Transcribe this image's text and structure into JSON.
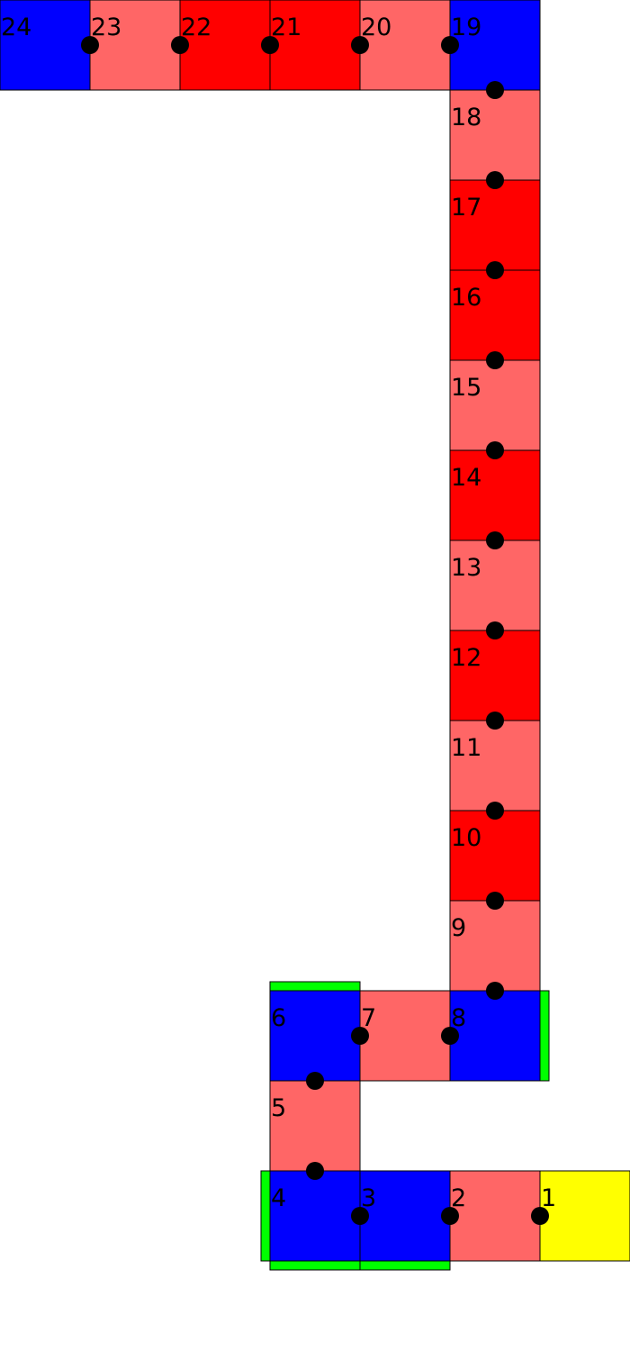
{
  "colors": {
    "blue": "#0000ff",
    "pink": "#ff6666",
    "red": "#ff0000",
    "yellow": "#ffff00",
    "green": "#00ff00",
    "outline": "#000000",
    "dot": "#000000"
  },
  "cells": [
    {
      "label": "1",
      "color": "yellow"
    },
    {
      "label": "2",
      "color": "pink"
    },
    {
      "label": "3",
      "color": "blue"
    },
    {
      "label": "4",
      "color": "blue"
    },
    {
      "label": "5",
      "color": "pink"
    },
    {
      "label": "6",
      "color": "blue"
    },
    {
      "label": "7",
      "color": "pink"
    },
    {
      "label": "8",
      "color": "blue"
    },
    {
      "label": "9",
      "color": "pink"
    },
    {
      "label": "10",
      "color": "red"
    },
    {
      "label": "11",
      "color": "pink"
    },
    {
      "label": "12",
      "color": "red"
    },
    {
      "label": "13",
      "color": "pink"
    },
    {
      "label": "14",
      "color": "red"
    },
    {
      "label": "15",
      "color": "pink"
    },
    {
      "label": "16",
      "color": "red"
    },
    {
      "label": "17",
      "color": "red"
    },
    {
      "label": "18",
      "color": "pink"
    },
    {
      "label": "19",
      "color": "blue"
    },
    {
      "label": "20",
      "color": "pink"
    },
    {
      "label": "21",
      "color": "red"
    },
    {
      "label": "22",
      "color": "red"
    },
    {
      "label": "23",
      "color": "pink"
    },
    {
      "label": "24",
      "color": "blue"
    }
  ]
}
